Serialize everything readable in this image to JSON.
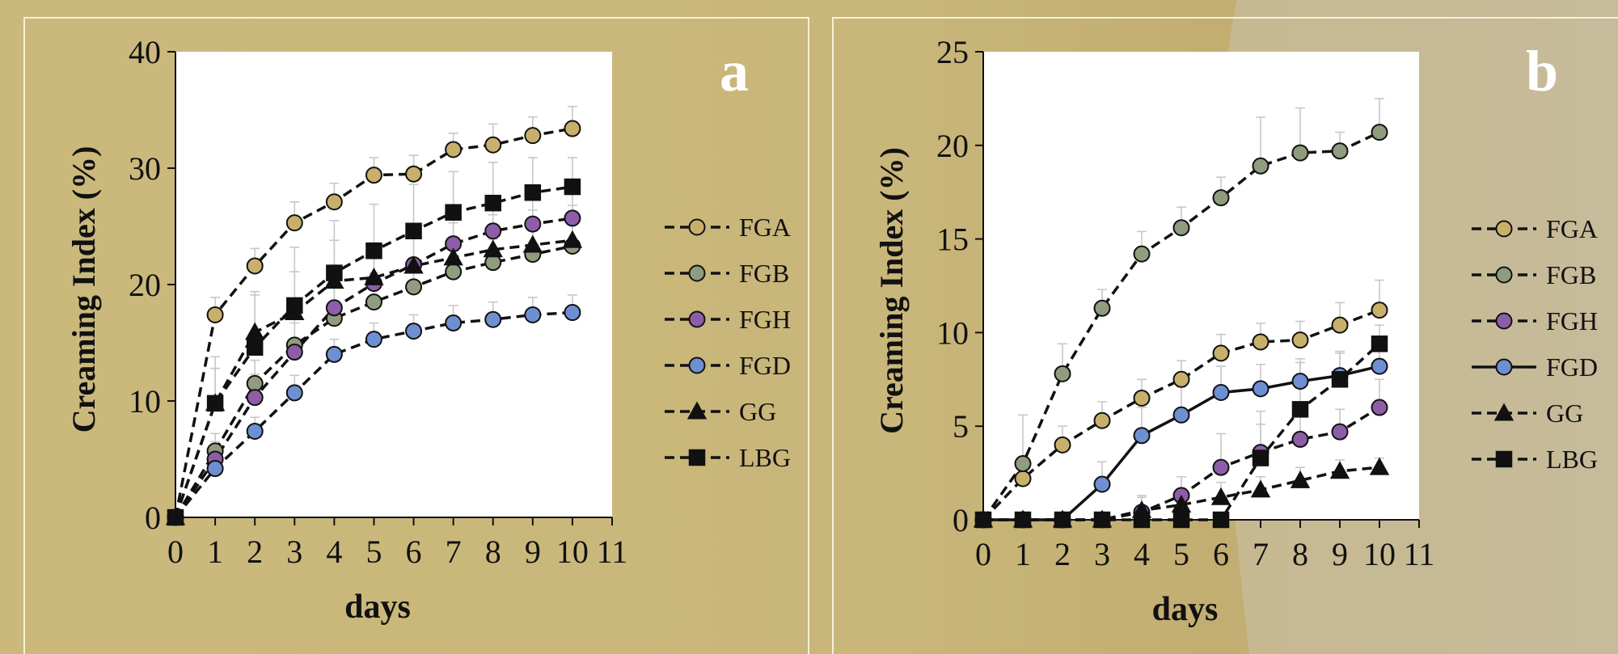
{
  "chart_data": [
    {
      "type": "line",
      "panel_label": "a",
      "xlabel": "days",
      "ylabel": "Creaming Index (%)",
      "xlim": [
        0,
        11
      ],
      "ylim": [
        0,
        40
      ],
      "xticks": [
        0,
        1,
        2,
        3,
        4,
        5,
        6,
        7,
        8,
        9,
        10,
        11
      ],
      "yticks": [
        0,
        10,
        20,
        30,
        40
      ],
      "grid": false,
      "legend_position": "right",
      "x": [
        0,
        1,
        2,
        3,
        4,
        5,
        6,
        7,
        8,
        9,
        10
      ],
      "series": [
        {
          "name": "FGA",
          "marker": "circle",
          "fill": "#c9b06a",
          "line": "dashed",
          "values": [
            0,
            17.4,
            21.6,
            25.3,
            27.1,
            29.4,
            29.5,
            31.6,
            32.0,
            32.8,
            33.4
          ],
          "errors": [
            0,
            1.5,
            1.5,
            1.8,
            1.6,
            1.5,
            1.6,
            1.4,
            1.8,
            1.6,
            1.9
          ]
        },
        {
          "name": "FGB",
          "marker": "circle",
          "fill": "#8f9c7e",
          "line": "dashed",
          "values": [
            0,
            5.7,
            11.5,
            14.8,
            17.1,
            18.5,
            19.8,
            21.1,
            21.9,
            22.6,
            23.3
          ],
          "errors": [
            0,
            1.5,
            2.0,
            3.0,
            3.0,
            2.5,
            2.2,
            2.0,
            2.0,
            2.0,
            2.0
          ]
        },
        {
          "name": "FGH",
          "marker": "circle",
          "fill": "#8d5da8",
          "line": "dashed",
          "values": [
            0,
            5.0,
            10.3,
            14.2,
            18.0,
            20.1,
            21.7,
            23.5,
            24.6,
            25.2,
            25.7
          ],
          "errors": [
            0,
            1.5,
            2.0,
            2.5,
            3.0,
            3.0,
            3.0,
            3.0,
            3.0,
            3.0,
            3.0
          ]
        },
        {
          "name": "FGD",
          "marker": "circle",
          "fill": "#6e8fd2",
          "line": "dashed",
          "values": [
            0,
            4.2,
            7.4,
            10.7,
            14.0,
            15.3,
            16.0,
            16.7,
            17.0,
            17.4,
            17.6
          ],
          "errors": [
            0,
            1.0,
            1.2,
            1.5,
            1.3,
            1.4,
            1.4,
            1.5,
            1.5,
            1.5,
            1.5
          ]
        },
        {
          "name": "GG",
          "marker": "triangle",
          "fill": "#111111",
          "line": "dashed",
          "values": [
            0,
            9.8,
            15.9,
            17.6,
            20.3,
            20.6,
            21.6,
            22.3,
            23.0,
            23.4,
            23.8
          ],
          "errors": [
            0,
            3.0,
            3.5,
            3.5,
            3.5,
            3.0,
            3.0,
            3.0,
            3.0,
            3.0,
            3.0
          ]
        },
        {
          "name": "LBG",
          "marker": "square",
          "fill": "#111111",
          "line": "dashed",
          "values": [
            0,
            9.8,
            14.6,
            18.2,
            21.0,
            22.9,
            24.6,
            26.2,
            27.0,
            27.9,
            28.4
          ],
          "errors": [
            0,
            4.0,
            4.5,
            5.0,
            4.5,
            4.0,
            4.0,
            3.5,
            3.5,
            3.0,
            2.5
          ]
        }
      ]
    },
    {
      "type": "line",
      "panel_label": "b",
      "xlabel": "days",
      "ylabel": "Creaming Index (%)",
      "xlim": [
        0,
        11
      ],
      "ylim": [
        0,
        25
      ],
      "xticks": [
        0,
        1,
        2,
        3,
        4,
        5,
        6,
        7,
        8,
        9,
        10,
        11
      ],
      "yticks": [
        0,
        5,
        10,
        15,
        20,
        25
      ],
      "grid": false,
      "legend_position": "right",
      "x": [
        0,
        1,
        2,
        3,
        4,
        5,
        6,
        7,
        8,
        9,
        10
      ],
      "series": [
        {
          "name": "FGA",
          "marker": "circle",
          "fill": "#c9b06a",
          "line": "dashed",
          "values": [
            0,
            2.2,
            4.0,
            5.3,
            6.5,
            7.5,
            8.9,
            9.5,
            9.6,
            10.4,
            11.2
          ],
          "errors": [
            0,
            0.8,
            1.0,
            1.0,
            1.0,
            1.0,
            1.0,
            1.0,
            1.0,
            1.2,
            1.6
          ]
        },
        {
          "name": "FGB",
          "marker": "circle",
          "fill": "#8f9c7e",
          "line": "dashed",
          "values": [
            0,
            3.0,
            7.8,
            11.3,
            14.2,
            15.6,
            17.2,
            18.9,
            19.6,
            19.7,
            20.7
          ],
          "errors": [
            0,
            2.6,
            1.6,
            1.0,
            1.2,
            1.1,
            1.1,
            2.6,
            2.4,
            1.0,
            1.8
          ]
        },
        {
          "name": "FGH",
          "marker": "circle",
          "fill": "#8d5da8",
          "line": "dashed",
          "values": [
            0,
            0,
            0,
            0,
            0.4,
            1.3,
            2.8,
            3.6,
            4.3,
            4.7,
            6.0
          ],
          "errors": [
            0,
            0,
            0,
            0,
            0.8,
            1.0,
            1.8,
            1.5,
            1.4,
            1.2,
            1.5
          ]
        },
        {
          "name": "FGD",
          "marker": "circle",
          "fill": "#6e8fd2",
          "line": "solid",
          "values": [
            0,
            0,
            0,
            1.9,
            4.5,
            5.6,
            6.8,
            7.0,
            7.4,
            7.7,
            8.2
          ],
          "errors": [
            0,
            0,
            0,
            1.2,
            1.5,
            1.5,
            1.4,
            1.3,
            1.2,
            1.2,
            1.2
          ]
        },
        {
          "name": "GG",
          "marker": "triangle",
          "fill": "#111111",
          "line": "dashed",
          "values": [
            0,
            0,
            0,
            0,
            0.5,
            0.8,
            1.2,
            1.6,
            2.1,
            2.6,
            2.8
          ],
          "errors": [
            0,
            0,
            0,
            0,
            0.8,
            0.8,
            0.8,
            0.7,
            0.7,
            0.6,
            0.5
          ]
        },
        {
          "name": "LBG",
          "marker": "square",
          "fill": "#111111",
          "line": "dashed",
          "values": [
            0,
            0,
            0,
            0,
            0,
            0,
            0,
            3.3,
            5.9,
            7.5,
            9.4
          ],
          "errors": [
            0,
            0,
            0,
            0,
            0,
            0,
            0,
            2.5,
            2.5,
            1.5,
            1.0
          ]
        }
      ]
    }
  ]
}
